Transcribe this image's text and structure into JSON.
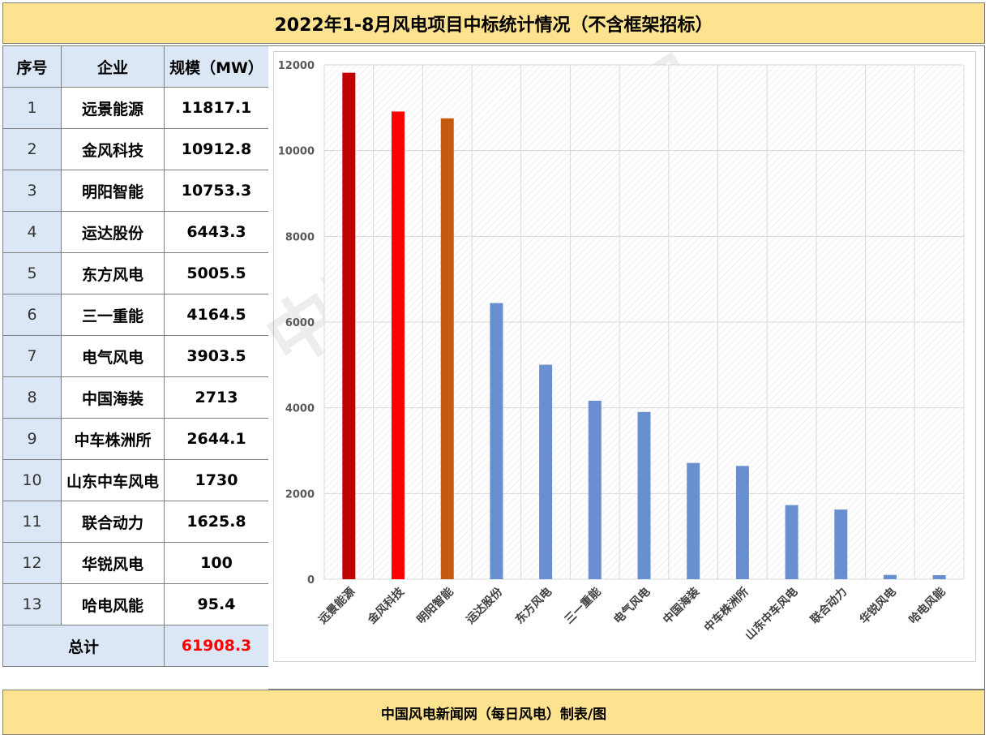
{
  "title": "2022年1-8月风电项目中标统计情况（不含框架招标）",
  "footer": "中国风电新闻网（每日风电）制表/图",
  "watermark": "中国风电新闻网",
  "table": {
    "headers": [
      "序号",
      "企业",
      "规模（MW）"
    ],
    "rows": [
      {
        "idx": "1",
        "name": "远景能源",
        "value": "11817.1"
      },
      {
        "idx": "2",
        "name": "金风科技",
        "value": "10912.8"
      },
      {
        "idx": "3",
        "name": "明阳智能",
        "value": "10753.3"
      },
      {
        "idx": "4",
        "name": "运达股份",
        "value": "6443.3"
      },
      {
        "idx": "5",
        "name": "东方风电",
        "value": "5005.5"
      },
      {
        "idx": "6",
        "name": "三一重能",
        "value": "4164.5"
      },
      {
        "idx": "7",
        "name": "电气风电",
        "value": "3903.5"
      },
      {
        "idx": "8",
        "name": "中国海装",
        "value": "2713"
      },
      {
        "idx": "9",
        "name": "中车株洲所",
        "value": "2644.1"
      },
      {
        "idx": "10",
        "name": "山东中车风电",
        "value": "1730"
      },
      {
        "idx": "11",
        "name": "联合动力",
        "value": "1625.8"
      },
      {
        "idx": "12",
        "name": "华锐风电",
        "value": "100"
      },
      {
        "idx": "13",
        "name": "哈电风能",
        "value": "95.4"
      }
    ],
    "total_label": "总计",
    "total_value": "61908.3"
  },
  "chart_data": {
    "type": "bar",
    "categories": [
      "远景能源",
      "金风科技",
      "明阳智能",
      "运达股份",
      "东方风电",
      "三一重能",
      "电气风电",
      "中国海装",
      "中车株洲所",
      "山东中车风电",
      "联合动力",
      "华锐风电",
      "哈电风能"
    ],
    "values": [
      11817.1,
      10912.8,
      10753.3,
      6443.3,
      5005.5,
      4164.5,
      3903.5,
      2713,
      2644.1,
      1730,
      1625.8,
      100,
      95.4
    ],
    "colors": [
      "#c00000",
      "#ff0000",
      "#c55a11",
      "#6a8fd0",
      "#6a8fd0",
      "#6a8fd0",
      "#6a8fd0",
      "#6a8fd0",
      "#6a8fd0",
      "#6a8fd0",
      "#6a8fd0",
      "#6a8fd0",
      "#6a8fd0"
    ],
    "ylim": [
      0,
      12000
    ],
    "yticks": [
      0,
      2000,
      4000,
      6000,
      8000,
      10000,
      12000
    ],
    "grid": true
  }
}
